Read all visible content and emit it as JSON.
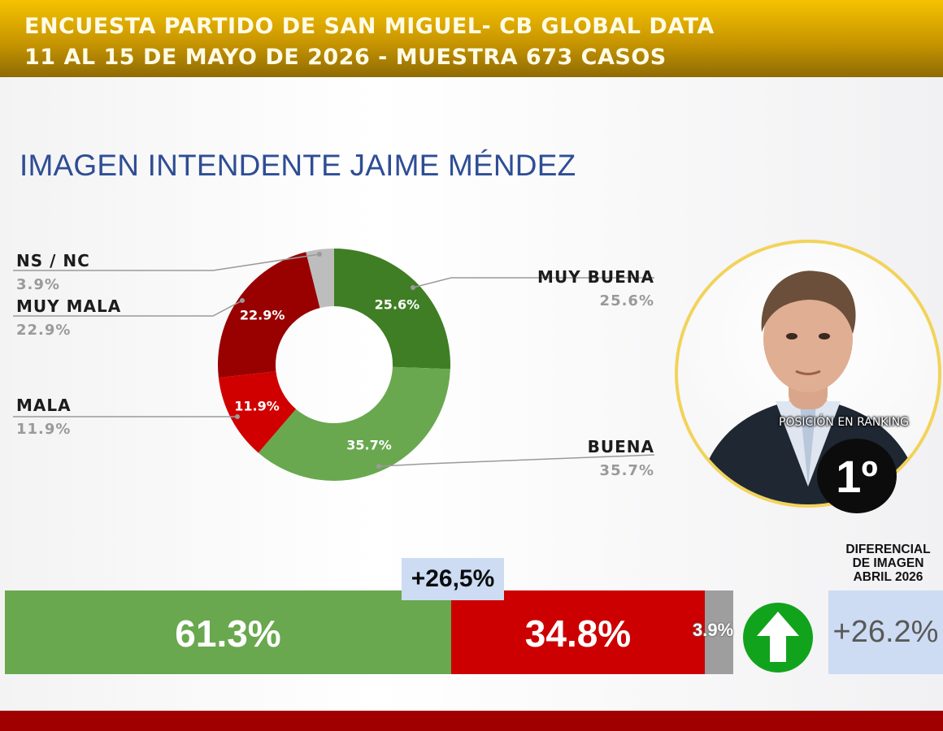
{
  "header": {
    "line1": "ENCUESTA PARTIDO DE SAN MIGUEL- CB GLOBAL DATA",
    "line2": "11 AL 15 DE MAYO DE 2026 - MUESTRA 673 CASOS"
  },
  "chart_data": [
    {
      "type": "pie",
      "title": "IMAGEN INTENDENTE  JAIME MÉNDEZ",
      "donut": true,
      "slices": [
        {
          "label": "MUY BUENA",
          "value": 25.6,
          "display": "25.6%",
          "color": "#3f7e24"
        },
        {
          "label": "BUENA",
          "value": 35.7,
          "display": "35.7%",
          "color": "#69a84f"
        },
        {
          "label": "MALA",
          "value": 11.9,
          "display": "11.9%",
          "color": "#d10000"
        },
        {
          "label": "MUY MALA",
          "value": 22.9,
          "display": "22.9%",
          "color": "#990000"
        },
        {
          "label": "NS / NC",
          "value": 3.9,
          "display": "3.9%",
          "color": "#bdbdbd"
        }
      ]
    },
    {
      "type": "bar",
      "orientation": "horizontal-stacked",
      "segments": [
        {
          "name": "positive",
          "value": 61.3,
          "display": "61.3%",
          "color": "#69a84f"
        },
        {
          "name": "negative",
          "value": 34.8,
          "display": "34.8%",
          "color": "#cc0000"
        },
        {
          "name": "ns-nc",
          "value": 3.9,
          "display": "3.9%",
          "color": "#9e9e9e"
        }
      ],
      "differential": "+26,5%"
    }
  ],
  "ranking": {
    "label": "POSICIÓN EN RANKING",
    "value": "1º"
  },
  "differential": {
    "title_line1": "DIFERENCIAL",
    "title_line2": "DE IMAGEN",
    "title_line3": "ABRIL 2026",
    "value": "+26.2%",
    "trend_icon": "up-arrow-icon",
    "trend_color": "#12a31c"
  }
}
